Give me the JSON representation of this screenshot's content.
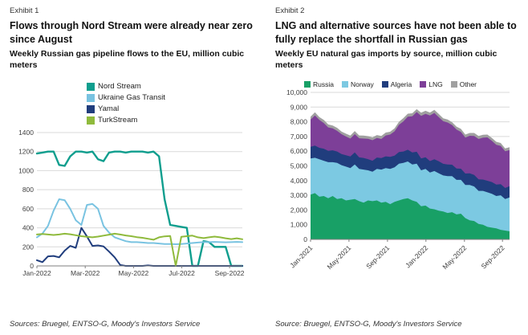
{
  "exhibit1": {
    "label": "Exhibit 1",
    "title": "Flows through Nord Stream were already near zero since August",
    "subtitle": "Weekly Russian gas pipeline flows to the EU, million cubic meters",
    "source": "Sources: Bruegel, ENTSO-G, Moody's Investors Service"
  },
  "exhibit2": {
    "label": "Exhibit 2",
    "title": "LNG and alternative sources have not been able to fully replace the shortfall in Russian gas",
    "subtitle": "Weekly EU natural gas imports by source, million cubic meters",
    "source": "Source: Bruegel, ENTSO-G, Moody's Investors Service"
  },
  "colors": {
    "grid": "#d9d9d9",
    "axis": "#7f7f7f",
    "tick_text": "#404040"
  },
  "chart_data": [
    {
      "type": "line",
      "title": "Flows through Nord Stream were already near zero since August",
      "subtitle": "Weekly Russian gas pipeline flows to the EU, million cubic meters",
      "xlabel": "",
      "ylabel": "million cubic meters",
      "ylim": [
        0,
        1400
      ],
      "ystep": 200,
      "y_format": "plain",
      "grid": true,
      "legend_position": "top-vertical",
      "x_unit": "week index from Jan-2022",
      "x_ticks": [
        "Jan-2022",
        "Mar-2022",
        "May-2022",
        "Jul-2022",
        "Sep-2022"
      ],
      "x_tick_pos": [
        0,
        8.7,
        17.4,
        26.1,
        34.7
      ],
      "series": [
        {
          "name": "Nord Stream",
          "color": "#0f9e8e",
          "width": 2.4,
          "values": [
            1180,
            1190,
            1200,
            1200,
            1060,
            1050,
            1150,
            1200,
            1200,
            1190,
            1200,
            1120,
            1100,
            1190,
            1200,
            1200,
            1190,
            1200,
            1200,
            1200,
            1190,
            1200,
            1150,
            700,
            430,
            420,
            410,
            400,
            0,
            0,
            260,
            250,
            200,
            200,
            200,
            0,
            0,
            0
          ]
        },
        {
          "name": "Ukraine Gas Transit",
          "color": "#79c3e1",
          "width": 2,
          "values": [
            300,
            340,
            420,
            580,
            700,
            690,
            600,
            480,
            430,
            640,
            650,
            600,
            420,
            350,
            300,
            280,
            260,
            250,
            250,
            245,
            240,
            240,
            235,
            230,
            230,
            228,
            230,
            235,
            240,
            245,
            250,
            250,
            252,
            250,
            248,
            250,
            252,
            250
          ]
        },
        {
          "name": "Yamal",
          "color": "#203d7d",
          "width": 2,
          "values": [
            60,
            40,
            100,
            105,
            90,
            160,
            210,
            190,
            400,
            310,
            210,
            215,
            205,
            150,
            90,
            10,
            0,
            0,
            0,
            0,
            5,
            0,
            0,
            0,
            0,
            0,
            0,
            0,
            0,
            0,
            0,
            0,
            0,
            0,
            0,
            0,
            0,
            0
          ]
        },
        {
          "name": "TurkStream",
          "color": "#8fba3c",
          "width": 2,
          "values": [
            330,
            335,
            330,
            325,
            330,
            338,
            332,
            322,
            312,
            305,
            300,
            308,
            318,
            328,
            338,
            330,
            320,
            312,
            302,
            295,
            285,
            275,
            300,
            310,
            315,
            0,
            305,
            312,
            318,
            300,
            292,
            300,
            308,
            300,
            290,
            282,
            290,
            280
          ]
        }
      ]
    },
    {
      "type": "area",
      "stacked": true,
      "title": "LNG and alternative sources have not been able to fully replace the shortfall in Russian gas",
      "subtitle": "Weekly EU natural gas imports by source, million cubic meters",
      "xlabel": "",
      "ylabel": "million cubic meters",
      "ylim": [
        0,
        10000
      ],
      "ystep": 1000,
      "y_format": "comma",
      "grid": true,
      "legend_position": "top-horizontal",
      "x_unit": "biweekly index from Jan-2021",
      "x_ticks": [
        "Jan-2021",
        "May-2021",
        "Sep-2021",
        "Jan-2022",
        "May-2022",
        "Sep-2022"
      ],
      "x_tick_pos": [
        0,
        8.7,
        17.4,
        26.1,
        34.8,
        43.4
      ],
      "series": [
        {
          "name": "Russia",
          "color": "#18a066",
          "values": [
            3050,
            3150,
            2900,
            2950,
            2800,
            2950,
            2750,
            2800,
            2650,
            2700,
            2750,
            2600,
            2500,
            2650,
            2600,
            2650,
            2500,
            2550,
            2400,
            2550,
            2650,
            2750,
            2800,
            2650,
            2550,
            2250,
            2300,
            2100,
            2050,
            1950,
            1900,
            1800,
            1850,
            1700,
            1750,
            1450,
            1300,
            1250,
            1050,
            1000,
            850,
            800,
            750,
            650,
            600,
            550
          ]
        },
        {
          "name": "Norway",
          "color": "#7cc9e2",
          "values": [
            2450,
            2400,
            2550,
            2400,
            2450,
            2300,
            2450,
            2250,
            2300,
            2150,
            2350,
            2200,
            2250,
            2050,
            2000,
            2150,
            2250,
            2300,
            2400,
            2350,
            2500,
            2450,
            2500,
            2450,
            2600,
            2450,
            2500,
            2450,
            2600,
            2550,
            2450,
            2500,
            2450,
            2350,
            2300,
            2250,
            2400,
            2350,
            2250,
            2300,
            2350,
            2300,
            2200,
            2350,
            2150,
            2300
          ]
        },
        {
          "name": "Algeria",
          "color": "#203d7d",
          "values": [
            800,
            830,
            780,
            820,
            770,
            810,
            780,
            760,
            770,
            790,
            810,
            780,
            790,
            760,
            750,
            770,
            780,
            800,
            810,
            800,
            790,
            780,
            800,
            820,
            810,
            800,
            790,
            780,
            800,
            810,
            790,
            800,
            780,
            770,
            760,
            780,
            800,
            790,
            780,
            770,
            790,
            800,
            780,
            760,
            750,
            770
          ]
        },
        {
          "name": "LNG",
          "color": "#7d3f98",
          "values": [
            1850,
            2050,
            1900,
            1750,
            1600,
            1500,
            1400,
            1350,
            1280,
            1220,
            1250,
            1300,
            1320,
            1380,
            1400,
            1330,
            1300,
            1420,
            1520,
            1650,
            1850,
            2050,
            2250,
            2450,
            2700,
            2900,
            2950,
            3100,
            3150,
            3000,
            2900,
            2850,
            2700,
            2650,
            2500,
            2450,
            2550,
            2650,
            2750,
            2850,
            2950,
            2800,
            2700,
            2600,
            2500,
            2450
          ]
        },
        {
          "name": "Other",
          "color": "#a0a0a0",
          "values": [
            200,
            220,
            190,
            210,
            200,
            190,
            210,
            180,
            190,
            200,
            210,
            190,
            200,
            180,
            190,
            200,
            210,
            200,
            190,
            200,
            210,
            220,
            200,
            210,
            200,
            220,
            210,
            200,
            210,
            220,
            200,
            210,
            190,
            200,
            210,
            200,
            190,
            200,
            210,
            200,
            190,
            200,
            210,
            200,
            190,
            200
          ]
        }
      ]
    }
  ]
}
